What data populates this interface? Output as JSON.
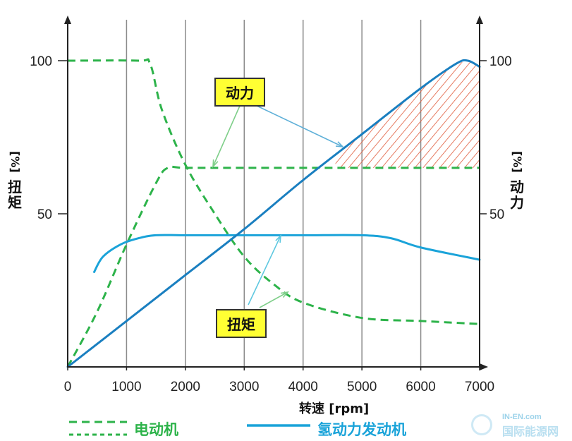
{
  "chart_data": {
    "type": "line",
    "xlabel": "转速 [rpm]",
    "ylabel_left": "扭矩 [%]",
    "ylabel_right": "动力 [%]",
    "xlim": [
      0,
      7000
    ],
    "ylim": [
      0,
      100
    ],
    "grid": "vertical",
    "x_ticks": [
      "0",
      "1000",
      "2000",
      "3000",
      "4000",
      "5000",
      "6000",
      "7000"
    ],
    "y_ticks_left": [
      "50",
      "100"
    ],
    "y_ticks_right": [
      "50",
      "100"
    ],
    "series": [
      {
        "name": "电动机",
        "kind": "torque",
        "style": "dashed",
        "color": "#2db34a",
        "x": [
          0,
          1200,
          1400,
          1600,
          2000,
          2500,
          3000,
          3500,
          4000,
          5000,
          6000,
          7000
        ],
        "y": [
          100,
          100,
          99,
          84,
          66,
          50,
          36,
          27,
          21,
          16,
          15,
          14
        ]
      },
      {
        "name": "电动机",
        "kind": "power",
        "style": "dashed",
        "color": "#2db34a",
        "x": [
          0,
          500,
          1000,
          1500,
          1700,
          2000,
          3000,
          4000,
          5000,
          6000,
          7000
        ],
        "y": [
          0,
          18,
          40,
          60,
          65,
          65,
          65,
          65,
          65,
          65,
          65
        ]
      },
      {
        "name": "氢动力发动机",
        "kind": "torque",
        "style": "solid",
        "color": "#1aa3d9",
        "x": [
          450,
          600,
          900,
          1200,
          1500,
          2000,
          3000,
          4000,
          5000,
          5500,
          6000,
          7000
        ],
        "y": [
          31,
          36,
          40,
          42,
          43,
          43,
          43,
          43,
          43,
          42,
          39,
          35
        ]
      },
      {
        "name": "氢动力发动机",
        "kind": "power",
        "style": "solid",
        "color": "#1a7fc0",
        "x": [
          0,
          1000,
          2000,
          3000,
          4000,
          5000,
          6000,
          6600,
          6800,
          7000
        ],
        "y": [
          0,
          15,
          30,
          45,
          61,
          76,
          91,
          99,
          100,
          98
        ]
      }
    ],
    "hatched_region": {
      "x_from": 4550,
      "x_to": 7000,
      "between": [
        "电动机 power",
        "氢动力发动机 power"
      ]
    },
    "annotations": [
      {
        "text": "动力",
        "targets": "power curves"
      },
      {
        "text": "扭矩",
        "targets": "torque curves"
      }
    ],
    "legend": {
      "placement": "bottom",
      "items": [
        {
          "label": "电动机",
          "color": "#2db34a",
          "style": "dashed"
        },
        {
          "label": "氢动力发动机",
          "color": "#1aa3d9",
          "style": "solid"
        }
      ]
    }
  },
  "axis": {
    "left_label_chars": [
      "扭",
      "矩"
    ],
    "left_label_unit": "[%]",
    "right_label_chars": [
      "动",
      "力"
    ],
    "right_label_unit": "[%]",
    "x_title": "转速 [rpm]"
  },
  "annotation_labels": {
    "power": "动力",
    "torque": "扭矩"
  },
  "watermark": {
    "line1": "IN-EN.com",
    "line2": "国际能源网"
  }
}
